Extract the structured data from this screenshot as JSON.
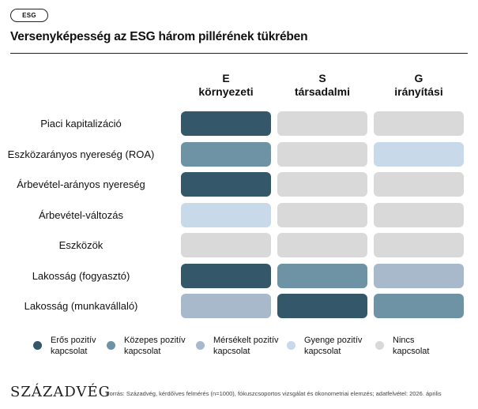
{
  "tag": "ESG",
  "title": "Versenyképesség az ESG három pillérének tükrében",
  "chart_data": {
    "type": "heatmap",
    "columns": [
      {
        "letter": "E",
        "name": "környezeti"
      },
      {
        "letter": "S",
        "name": "társadalmi"
      },
      {
        "letter": "G",
        "name": "irányítási"
      }
    ],
    "rows": [
      "Piaci kapitalizáció",
      "Eszközarányos nyereség (ROA)",
      "Árbevétel-arányos nyereség",
      "Árbevétel-változás",
      "Eszközök",
      "Lakosság (fogyasztó)",
      "Lakosság (munkavállaló)"
    ],
    "levels": [
      {
        "label_line1": "Erős pozitív",
        "label_line2": "kapcsolat",
        "color": "#34576a"
      },
      {
        "label_line1": "Közepes pozitív",
        "label_line2": "kapcsolat",
        "color": "#6e93a5"
      },
      {
        "label_line1": "Mérsékelt pozitív",
        "label_line2": "kapcsolat",
        "color": "#a7b9ca"
      },
      {
        "label_line1": "Gyenge pozitív",
        "label_line2": "kapcsolat",
        "color": "#c8d9ea"
      },
      {
        "label_line1": "Nincs",
        "label_line2": "kapcsolat",
        "color": "#d9d9d9"
      }
    ],
    "matrix": [
      [
        0,
        4,
        4
      ],
      [
        1,
        4,
        3
      ],
      [
        0,
        4,
        4
      ],
      [
        3,
        4,
        4
      ],
      [
        4,
        4,
        4
      ],
      [
        0,
        1,
        2
      ],
      [
        2,
        0,
        1
      ]
    ]
  },
  "footer": {
    "logo": "SZÁZADVÉG",
    "source": "Forrás: Századvég, kérdőíves felmérés (n=1000), fókuszcsoportos vizsgálat és ökonometriai elemzés; adatfelvétel: 2026. április"
  }
}
